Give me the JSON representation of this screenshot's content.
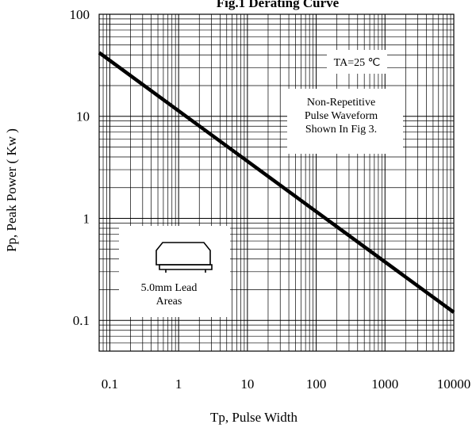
{
  "chart_data": {
    "type": "line",
    "title": "Fig.1 Derating Curve",
    "xlabel": "Tp, Pulse Width",
    "ylabel": "Pp, Peak Power ( Kw )",
    "x_scale": "log",
    "y_scale": "log",
    "xlim": [
      0.07,
      10000
    ],
    "ylim": [
      0.05,
      100
    ],
    "x_ticks": [
      0.1,
      1,
      10,
      100,
      1000,
      10000
    ],
    "x_tick_labels": [
      "0.1",
      "1",
      "10",
      "100",
      "1000",
      "10000"
    ],
    "y_ticks": [
      0.1,
      1,
      10,
      100
    ],
    "y_tick_labels": [
      "0.1",
      "1",
      "10",
      "100"
    ],
    "grid": true,
    "series": [
      {
        "x": [
          0.07,
          10000
        ],
        "y": [
          42,
          0.12
        ],
        "color": "#000000"
      }
    ],
    "annotations": {
      "condition": "TA=25 ℃",
      "waveform": [
        "Non-Repetitive",
        "Pulse Waveform",
        "Shown In Fig 3."
      ],
      "lead": [
        "5.0mm Lead",
        "Areas"
      ]
    }
  }
}
